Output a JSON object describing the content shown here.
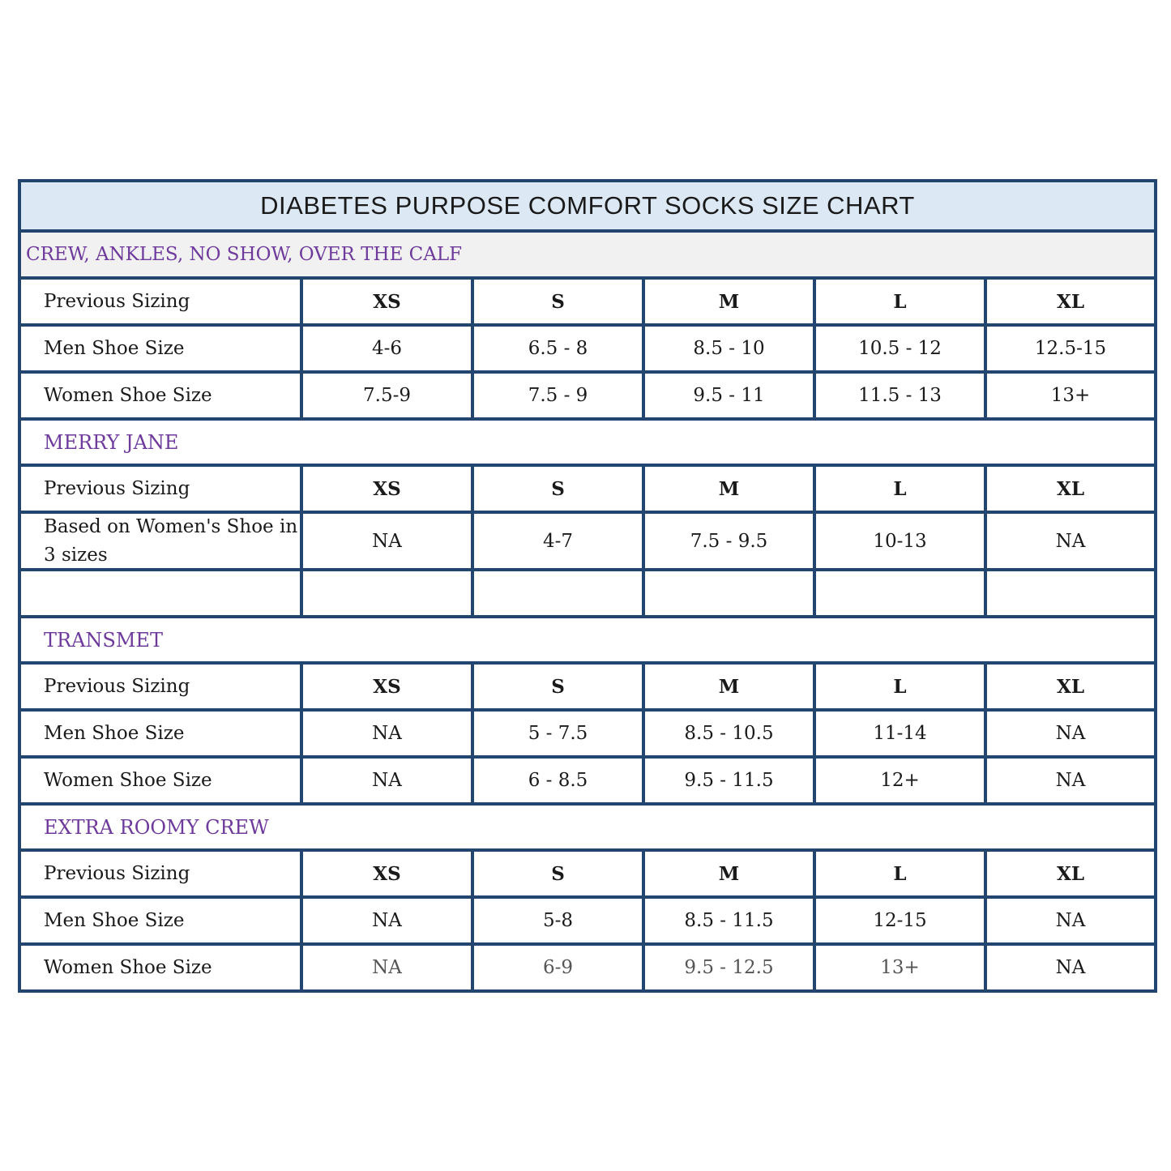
{
  "title": "DIABETES PURPOSE COMFORT SOCKS SIZE CHART",
  "sections": [
    {
      "name": "CREW, ANKLES, NO SHOW, OVER THE CALF",
      "rows": [
        {
          "label": "Previous Sizing",
          "values": [
            "XS",
            "S",
            "M",
            "L",
            "XL"
          ]
        },
        {
          "label": "Men Shoe Size",
          "values": [
            "4-6",
            "6.5 - 8",
            "8.5 - 10",
            "10.5 - 12",
            "12.5-15"
          ]
        },
        {
          "label": "Women Shoe Size",
          "values": [
            "7.5-9",
            "7.5 - 9",
            "9.5 - 11",
            "11.5 - 13",
            "13+"
          ]
        }
      ]
    },
    {
      "name": "MERRY JANE",
      "rows": [
        {
          "label": "Previous Sizing",
          "values": [
            "XS",
            "S",
            "M",
            "L",
            "XL"
          ]
        },
        {
          "label": "Based on Women's Shoe in 3 sizes",
          "values": [
            "NA",
            "4-7",
            "7.5 - 9.5",
            "10-13",
            "NA"
          ]
        },
        {
          "label": "",
          "values": [
            "",
            "",
            "",
            "",
            ""
          ]
        }
      ]
    },
    {
      "name": "TRANSMET",
      "rows": [
        {
          "label": "Previous Sizing",
          "values": [
            "XS",
            "S",
            "M",
            "L",
            "XL"
          ]
        },
        {
          "label": "Men Shoe Size",
          "values": [
            "NA",
            "5 - 7.5",
            "8.5 - 10.5",
            "11-14",
            "NA"
          ]
        },
        {
          "label": "Women Shoe Size",
          "values": [
            "NA",
            "6 - 8.5",
            "9.5 - 11.5",
            "12+",
            "NA"
          ]
        }
      ]
    },
    {
      "name": "EXTRA ROOMY CREW",
      "rows": [
        {
          "label": "Previous Sizing",
          "values": [
            "XS",
            "S",
            "M",
            "L",
            "XL"
          ]
        },
        {
          "label": "Men Shoe Size",
          "values": [
            "NA",
            "5-8",
            "8.5 - 11.5",
            "12-15",
            "NA"
          ]
        },
        {
          "label": "Women Shoe Size",
          "values": [
            "NA",
            "6-9",
            "9.5 - 12.5",
            "13+",
            "NA"
          ]
        }
      ]
    }
  ]
}
